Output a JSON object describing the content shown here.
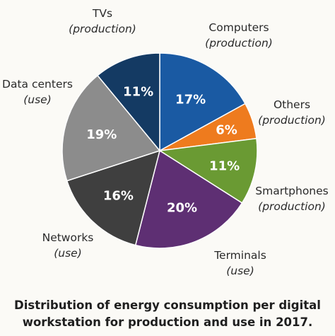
{
  "chart_data": {
    "type": "pie",
    "title_line1": "Distribution of energy consumption per digital",
    "title_line2": "workstation for production and use in 2017.",
    "slices": [
      {
        "name": "Computers",
        "kind": "(production)",
        "value": 17,
        "label": "17%",
        "color": "#1a5aa3"
      },
      {
        "name": "Others",
        "kind": "(production)",
        "value": 6,
        "label": "6%",
        "color": "#ee7b1e"
      },
      {
        "name": "Smartphones",
        "kind": "(production)",
        "value": 11,
        "label": "11%",
        "color": "#6a9a33"
      },
      {
        "name": "Terminals",
        "kind": "(use)",
        "value": 20,
        "label": "20%",
        "color": "#5e2f73"
      },
      {
        "name": "Networks",
        "kind": "(use)",
        "value": 16,
        "label": "16%",
        "color": "#3f3f3f"
      },
      {
        "name": "Data centers",
        "kind": "(use)",
        "value": 19,
        "label": "19%",
        "color": "#8c8c8c"
      },
      {
        "name": "TVs",
        "kind": "(production)",
        "value": 11,
        "label": "11%",
        "color": "#143a63"
      }
    ]
  }
}
